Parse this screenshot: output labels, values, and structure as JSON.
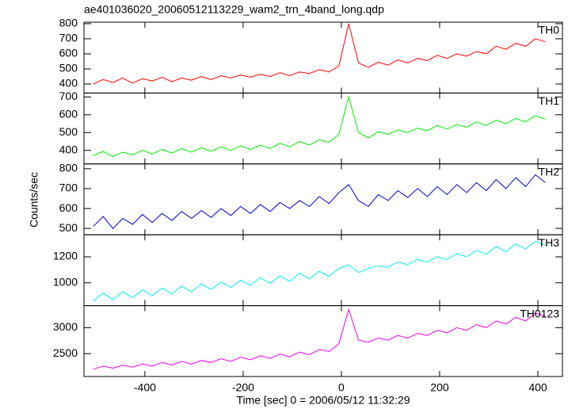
{
  "chart_data": {
    "type": "stacked-line",
    "title": "ae401036020_20060512113229_wam2_trn_4band_long.qdp",
    "xlabel": "Time [sec] 0 = 2006/05/12 11:32:29",
    "ylabel": "Counts/sec",
    "xlim": [
      -524,
      450
    ],
    "xticks": [
      -400,
      -200,
      0,
      200,
      400
    ],
    "x": [
      -505,
      -485,
      -465,
      -445,
      -425,
      -405,
      -385,
      -365,
      -345,
      -325,
      -305,
      -285,
      -265,
      -245,
      -225,
      -205,
      -185,
      -165,
      -145,
      -125,
      -105,
      -85,
      -65,
      -45,
      -25,
      -5,
      15,
      35,
      55,
      75,
      95,
      115,
      135,
      155,
      175,
      195,
      215,
      235,
      255,
      275,
      295,
      315,
      335,
      355,
      375,
      395,
      415
    ],
    "series": [
      {
        "name": "TH0",
        "color": "#ff0000",
        "ylim": [
          340,
          810
        ],
        "yticks": [
          400,
          500,
          600,
          700,
          800
        ],
        "values": [
          400,
          430,
          410,
          440,
          405,
          435,
          420,
          445,
          415,
          440,
          425,
          450,
          430,
          455,
          440,
          460,
          445,
          465,
          450,
          475,
          455,
          480,
          470,
          495,
          480,
          520,
          800,
          540,
          510,
          545,
          525,
          560,
          540,
          570,
          555,
          590,
          570,
          600,
          585,
          615,
          600,
          650,
          630,
          670,
          650,
          700,
          680
        ]
      },
      {
        "name": "TH1",
        "color": "#00ee00",
        "ylim": [
          324,
          722
        ],
        "yticks": [
          400,
          500,
          600,
          700
        ],
        "values": [
          370,
          395,
          365,
          390,
          375,
          400,
          380,
          405,
          385,
          410,
          390,
          415,
          395,
          420,
          400,
          425,
          405,
          430,
          410,
          440,
          420,
          450,
          430,
          460,
          445,
          490,
          700,
          500,
          470,
          505,
          490,
          515,
          500,
          525,
          510,
          540,
          520,
          545,
          530,
          560,
          540,
          570,
          550,
          580,
          560,
          595,
          575
        ]
      },
      {
        "name": "TH2",
        "color": "#0000dd",
        "ylim": [
          468,
          824
        ],
        "yticks": [
          500,
          600,
          700,
          800
        ],
        "values": [
          510,
          560,
          500,
          550,
          520,
          570,
          530,
          575,
          540,
          585,
          550,
          590,
          555,
          600,
          565,
          610,
          575,
          620,
          585,
          630,
          600,
          640,
          610,
          660,
          625,
          680,
          720,
          640,
          610,
          670,
          640,
          690,
          655,
          700,
          660,
          710,
          670,
          720,
          680,
          730,
          690,
          745,
          700,
          755,
          710,
          770,
          730
        ]
      },
      {
        "name": "TH3",
        "color": "#00eeee",
        "ylim": [
          824,
          1370
        ],
        "yticks": [
          1000,
          1200
        ],
        "values": [
          860,
          920,
          870,
          930,
          885,
          945,
          900,
          960,
          915,
          975,
          930,
          990,
          950,
          1005,
          965,
          1020,
          980,
          1040,
          995,
          1055,
          1010,
          1075,
          1030,
          1090,
          1050,
          1110,
          1140,
          1080,
          1110,
          1130,
          1120,
          1160,
          1140,
          1180,
          1160,
          1200,
          1180,
          1225,
          1200,
          1250,
          1220,
          1280,
          1240,
          1300,
          1260,
          1320,
          1290
        ]
      },
      {
        "name": "TH0123",
        "color": "#ee00ee",
        "ylim": [
          2060,
          3424
        ],
        "yticks": [
          2500,
          3000
        ],
        "values": [
          2200,
          2260,
          2220,
          2280,
          2240,
          2300,
          2260,
          2330,
          2280,
          2350,
          2300,
          2370,
          2330,
          2400,
          2350,
          2430,
          2380,
          2460,
          2410,
          2490,
          2440,
          2530,
          2480,
          2580,
          2540,
          2690,
          3350,
          2760,
          2720,
          2800,
          2760,
          2850,
          2800,
          2890,
          2850,
          2950,
          2900,
          3000,
          2950,
          3060,
          3000,
          3130,
          3070,
          3200,
          3130,
          3280,
          3220
        ]
      }
    ]
  }
}
